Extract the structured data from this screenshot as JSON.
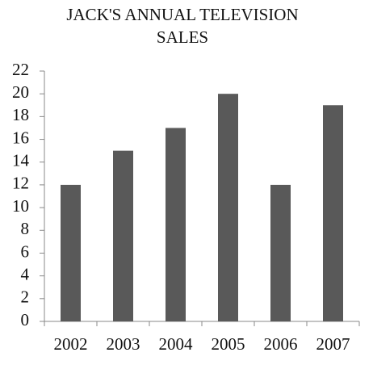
{
  "chart_data": {
    "type": "bar",
    "title": "JACK'S ANNUAL TELEVISION SALES",
    "categories": [
      "2002",
      "2003",
      "2004",
      "2005",
      "2006",
      "2007"
    ],
    "values": [
      12,
      15,
      17,
      20,
      12,
      19
    ],
    "color": "#595959",
    "ylim": [
      0,
      22
    ],
    "yticks": [
      0,
      2,
      4,
      6,
      8,
      10,
      12,
      14,
      16,
      18,
      20,
      22
    ],
    "grid": false
  }
}
